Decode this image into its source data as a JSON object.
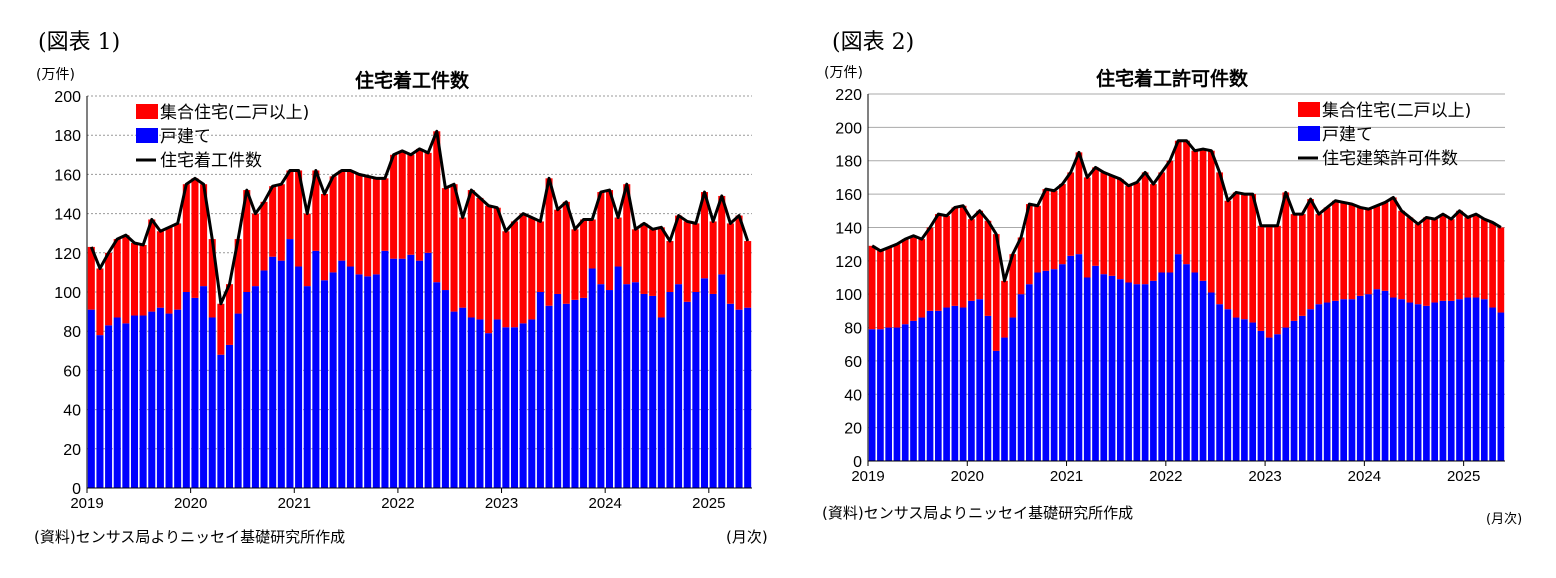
{
  "colors": {
    "multi": "#ff0000",
    "single": "#0000ff",
    "line": "#000000"
  },
  "chart_data": [
    {
      "type": "bar",
      "stacked": true,
      "figure_label": "(図表 1)",
      "title": "住宅着工件数",
      "ylabel": "(万件)",
      "xlabel": "(月次)",
      "source": "(資料)センサス局よりニッセイ基礎研究所作成",
      "ylim": [
        0,
        200
      ],
      "yticks": [
        0,
        20,
        40,
        60,
        80,
        100,
        120,
        140,
        160,
        180,
        200
      ],
      "xticks": [
        "2019",
        "2020",
        "2021",
        "2022",
        "2023",
        "2024",
        "2025"
      ],
      "start": "2019-01",
      "frequency": "monthly",
      "grid": "horizontal dotted",
      "legend": "top-left",
      "series": [
        {
          "name": "集合住宅(二戸以上)",
          "kind": "bar",
          "values_note": "total minus single"
        },
        {
          "name": "戸建て",
          "kind": "bar",
          "values": [
            91,
            78,
            83,
            87,
            84,
            88,
            88,
            90,
            92,
            89,
            91,
            100,
            97,
            103,
            87,
            68,
            73,
            89,
            100,
            103,
            111,
            118,
            116,
            127,
            113,
            103,
            121,
            106,
            110,
            116,
            113,
            109,
            108,
            109,
            121,
            117,
            117,
            119,
            116,
            120,
            105,
            101,
            90,
            92,
            87,
            86,
            79,
            86,
            82,
            82,
            84,
            86,
            100,
            93,
            99,
            94,
            96,
            97,
            112,
            104,
            101,
            113,
            104,
            105,
            99,
            98,
            87,
            100,
            104,
            95,
            100,
            107,
            99,
            109,
            94,
            91,
            92
          ]
        },
        {
          "name": "住宅着工件数",
          "kind": "line",
          "values": [
            123,
            112,
            120,
            127,
            129,
            125,
            124,
            137,
            131,
            133,
            135,
            155,
            158,
            155,
            127,
            94,
            104,
            127,
            152,
            140,
            146,
            154,
            155,
            162,
            162,
            140,
            162,
            150,
            159,
            162,
            162,
            160,
            159,
            158,
            158,
            170,
            172,
            170,
            173,
            171,
            182,
            153,
            155,
            138,
            152,
            148,
            144,
            143,
            131,
            136,
            140,
            138,
            136,
            158,
            142,
            146,
            132,
            137,
            137,
            151,
            152,
            138,
            155,
            132,
            135,
            132,
            133,
            126,
            139,
            136,
            135,
            151,
            136,
            149,
            135,
            139,
            126
          ]
        }
      ]
    },
    {
      "type": "bar",
      "stacked": true,
      "figure_label": "(図表 2)",
      "title": "住宅着工許可件数",
      "ylabel": "(万件)",
      "xlabel": "(月次)",
      "source": "(資料)センサス局よりニッセイ基礎研究所作成",
      "ylim": [
        0,
        220
      ],
      "yticks": [
        0,
        20,
        40,
        60,
        80,
        100,
        120,
        140,
        160,
        180,
        200,
        220
      ],
      "xticks": [
        "2019",
        "2020",
        "2021",
        "2022",
        "2023",
        "2024",
        "2025"
      ],
      "start": "2019-01",
      "frequency": "monthly",
      "grid": "horizontal solid",
      "legend": "top-right",
      "series": [
        {
          "name": "集合住宅(二戸以上)",
          "kind": "bar",
          "values_note": "total minus single"
        },
        {
          "name": "戸建て",
          "kind": "bar",
          "values": [
            79,
            79,
            80,
            80,
            82,
            84,
            86,
            90,
            90,
            92,
            93,
            92,
            96,
            97,
            87,
            66,
            74,
            86,
            100,
            106,
            113,
            114,
            115,
            118,
            123,
            124,
            110,
            117,
            112,
            111,
            109,
            107,
            106,
            106,
            108,
            113,
            113,
            124,
            118,
            113,
            108,
            101,
            94,
            91,
            86,
            85,
            83,
            78,
            74,
            76,
            80,
            84,
            87,
            91,
            94,
            95,
            96,
            97,
            97,
            99,
            100,
            103,
            102,
            98,
            97,
            95,
            94,
            93,
            95,
            96,
            96,
            97,
            98,
            98,
            97,
            92,
            89
          ]
        },
        {
          "name": "住宅建築許可件数",
          "kind": "line",
          "values": [
            129,
            126,
            128,
            130,
            133,
            135,
            133,
            140,
            148,
            147,
            152,
            153,
            145,
            150,
            144,
            136,
            108,
            124,
            134,
            154,
            153,
            163,
            162,
            166,
            173,
            185,
            170,
            176,
            173,
            171,
            169,
            165,
            167,
            173,
            166,
            173,
            180,
            192,
            192,
            186,
            187,
            186,
            173,
            156,
            161,
            160,
            160,
            141,
            141,
            141,
            161,
            148,
            148,
            157,
            148,
            152,
            156,
            155,
            154,
            152,
            151,
            153,
            155,
            158,
            150,
            146,
            142,
            146,
            145,
            148,
            145,
            150,
            146,
            148,
            145,
            143,
            140
          ]
        }
      ]
    }
  ]
}
